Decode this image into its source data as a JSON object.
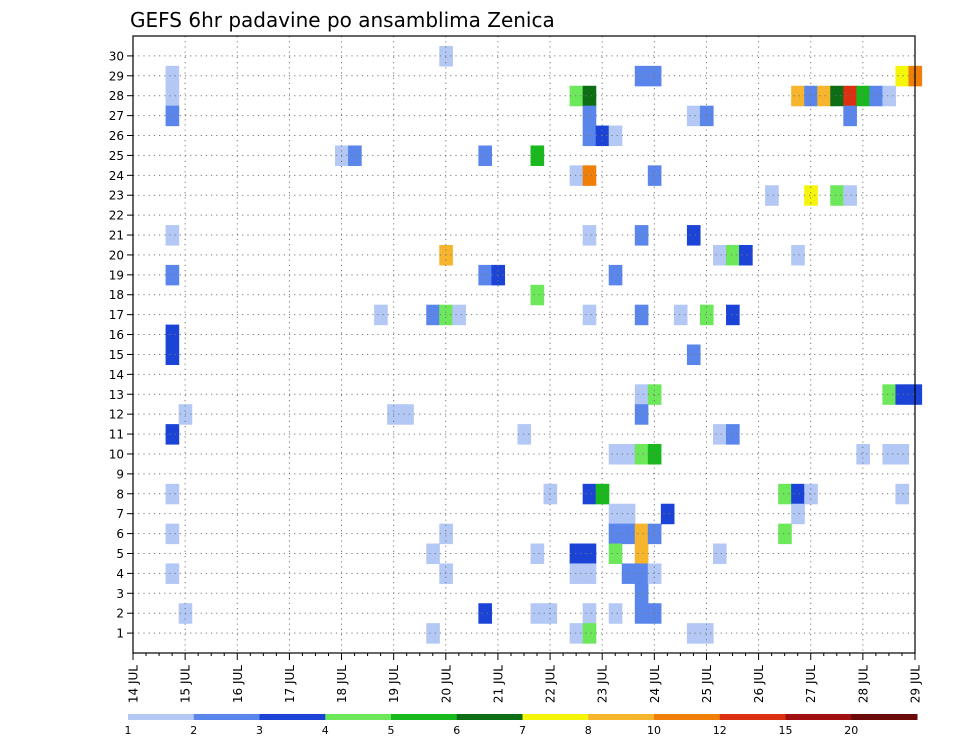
{
  "chart_data": {
    "type": "heatmap",
    "title": "GEFS 6hr padavine po ansamblima Zenica",
    "xlabel": "",
    "ylabel": "",
    "x_ticks": [
      "14 JUL",
      "15 JUL",
      "16 JUL",
      "17 JUL",
      "18 JUL",
      "19 JUL",
      "20 JUL",
      "21 JUL",
      "22 JUL",
      "23 JUL",
      "24 JUL",
      "25 JUL",
      "26 JUL",
      "27 JUL",
      "28 JUL",
      "29 JUL"
    ],
    "xlim_days": [
      14,
      29
    ],
    "time_step_hours": 6,
    "y_ticks": [
      1,
      2,
      3,
      4,
      5,
      6,
      7,
      8,
      9,
      10,
      11,
      12,
      13,
      14,
      15,
      16,
      17,
      18,
      19,
      20,
      21,
      22,
      23,
      24,
      25,
      26,
      27,
      28,
      29,
      30
    ],
    "ylim": [
      0,
      31
    ],
    "grid": true,
    "colorbar": {
      "position": "bottom",
      "tick_labels": [
        "1",
        "2",
        "3",
        "4",
        "5",
        "6",
        "7",
        "8",
        "10",
        "12",
        "15",
        "20"
      ],
      "colors": [
        "#b3c8f5",
        "#5a86eb",
        "#1b44d6",
        "#6de85b",
        "#19b91e",
        "#0d6e16",
        "#f5f50a",
        "#f7b42d",
        "#f07f0a",
        "#dc3012",
        "#a01010",
        "#6a0a0a"
      ]
    },
    "cells_note": "[day_of_month, member, level]; level 1 = 1–2 mm, 2 = 2–3, 3 = 3–4, 4 = 4–5, 5 = 5–6, 6 = 6–7, 7 = 7–8, 8 = 8–10, 9 = 10–12, 10 = 12–15, 11 = 15–20, 12 = >20",
    "cells": [
      [
        14.75,
        29,
        1
      ],
      [
        14.75,
        28,
        1
      ],
      [
        14.75,
        27,
        2
      ],
      [
        14.75,
        21,
        1
      ],
      [
        14.75,
        19,
        2
      ],
      [
        14.75,
        16,
        3
      ],
      [
        14.75,
        15,
        3
      ],
      [
        14.75,
        11,
        3
      ],
      [
        14.75,
        8,
        1
      ],
      [
        14.75,
        6,
        1
      ],
      [
        14.75,
        4,
        1
      ],
      [
        15.0,
        12,
        1
      ],
      [
        15.0,
        2,
        1
      ],
      [
        18.0,
        25,
        1
      ],
      [
        18.25,
        25,
        2
      ],
      [
        18.75,
        17,
        1
      ],
      [
        19.0,
        12,
        1
      ],
      [
        19.25,
        12,
        1
      ],
      [
        19.75,
        17,
        2
      ],
      [
        19.75,
        5,
        1
      ],
      [
        19.75,
        1,
        1
      ],
      [
        20.0,
        30,
        1
      ],
      [
        20.0,
        20,
        8
      ],
      [
        20.0,
        17,
        4
      ],
      [
        20.0,
        6,
        1
      ],
      [
        20.0,
        4,
        1
      ],
      [
        20.25,
        17,
        1
      ],
      [
        20.75,
        25,
        2
      ],
      [
        20.75,
        19,
        2
      ],
      [
        20.75,
        2,
        3
      ],
      [
        21.0,
        19,
        3
      ],
      [
        21.5,
        11,
        1
      ],
      [
        21.75,
        25,
        5
      ],
      [
        21.75,
        18,
        4
      ],
      [
        21.75,
        5,
        1
      ],
      [
        21.75,
        2,
        1
      ],
      [
        22.0,
        8,
        1
      ],
      [
        22.0,
        2,
        1
      ],
      [
        22.5,
        28,
        4
      ],
      [
        22.5,
        24,
        1
      ],
      [
        22.5,
        5,
        3
      ],
      [
        22.5,
        4,
        1
      ],
      [
        22.5,
        1,
        1
      ],
      [
        22.75,
        28,
        6
      ],
      [
        22.75,
        27,
        2
      ],
      [
        22.75,
        26,
        2
      ],
      [
        22.75,
        24,
        9
      ],
      [
        22.75,
        21,
        1
      ],
      [
        22.75,
        17,
        1
      ],
      [
        22.75,
        8,
        3
      ],
      [
        22.75,
        5,
        3
      ],
      [
        22.75,
        4,
        1
      ],
      [
        22.75,
        2,
        1
      ],
      [
        22.75,
        1,
        4
      ],
      [
        23.0,
        26,
        3
      ],
      [
        23.0,
        8,
        5
      ],
      [
        23.25,
        26,
        1
      ],
      [
        23.25,
        19,
        2
      ],
      [
        23.25,
        10,
        1
      ],
      [
        23.25,
        7,
        1
      ],
      [
        23.25,
        6,
        2
      ],
      [
        23.25,
        5,
        4
      ],
      [
        23.25,
        2,
        1
      ],
      [
        23.5,
        10,
        1
      ],
      [
        23.5,
        7,
        1
      ],
      [
        23.5,
        6,
        2
      ],
      [
        23.5,
        4,
        2
      ],
      [
        23.75,
        29,
        2
      ],
      [
        23.75,
        21,
        2
      ],
      [
        23.75,
        17,
        2
      ],
      [
        23.75,
        13,
        1
      ],
      [
        23.75,
        12,
        2
      ],
      [
        23.75,
        10,
        4
      ],
      [
        23.75,
        6,
        8
      ],
      [
        23.75,
        5,
        8
      ],
      [
        23.75,
        4,
        2
      ],
      [
        23.75,
        3,
        2
      ],
      [
        23.75,
        2,
        2
      ],
      [
        24.0,
        29,
        2
      ],
      [
        24.0,
        24,
        2
      ],
      [
        24.0,
        13,
        4
      ],
      [
        24.0,
        10,
        5
      ],
      [
        24.0,
        6,
        2
      ],
      [
        24.0,
        4,
        1
      ],
      [
        24.0,
        2,
        2
      ],
      [
        24.25,
        7,
        3
      ],
      [
        24.5,
        17,
        1
      ],
      [
        24.75,
        27,
        1
      ],
      [
        24.75,
        21,
        3
      ],
      [
        24.75,
        15,
        2
      ],
      [
        24.75,
        1,
        1
      ],
      [
        25.0,
        27,
        2
      ],
      [
        25.0,
        17,
        4
      ],
      [
        25.0,
        1,
        1
      ],
      [
        25.25,
        20,
        1
      ],
      [
        25.25,
        11,
        1
      ],
      [
        25.25,
        5,
        1
      ],
      [
        25.5,
        20,
        4
      ],
      [
        25.5,
        17,
        3
      ],
      [
        25.5,
        11,
        2
      ],
      [
        25.75,
        20,
        3
      ],
      [
        26.25,
        23,
        1
      ],
      [
        26.5,
        8,
        4
      ],
      [
        26.5,
        6,
        4
      ],
      [
        26.75,
        28,
        8
      ],
      [
        26.75,
        20,
        1
      ],
      [
        26.75,
        8,
        3
      ],
      [
        26.75,
        7,
        1
      ],
      [
        27.0,
        28,
        2
      ],
      [
        27.0,
        23,
        7
      ],
      [
        27.0,
        8,
        1
      ],
      [
        27.25,
        28,
        8
      ],
      [
        27.5,
        28,
        6
      ],
      [
        27.5,
        23,
        4
      ],
      [
        27.75,
        28,
        10
      ],
      [
        27.75,
        27,
        2
      ],
      [
        27.75,
        23,
        1
      ],
      [
        28.0,
        28,
        5
      ],
      [
        28.0,
        10,
        1
      ],
      [
        28.25,
        28,
        2
      ],
      [
        28.5,
        28,
        1
      ],
      [
        28.5,
        13,
        4
      ],
      [
        28.5,
        10,
        1
      ],
      [
        28.75,
        29,
        7
      ],
      [
        28.75,
        13,
        3
      ],
      [
        28.75,
        10,
        1
      ],
      [
        28.75,
        8,
        1
      ],
      [
        29.0,
        29,
        9
      ],
      [
        29.0,
        13,
        3
      ]
    ]
  }
}
